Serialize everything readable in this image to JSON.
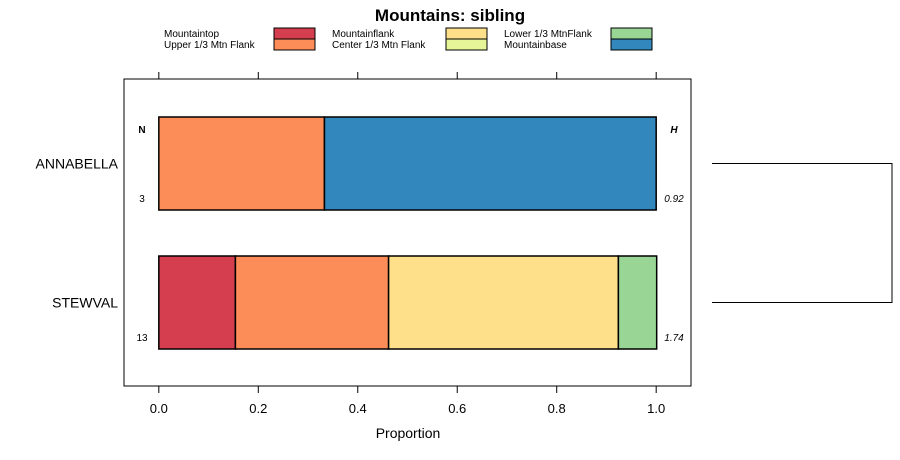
{
  "chart_data": {
    "type": "bar",
    "orientation": "horizontal",
    "stacked": true,
    "title": "Mountains: sibling",
    "xlabel": "Proportion",
    "ylabel": "",
    "xlim": [
      -0.07,
      1.07
    ],
    "x_ticks": [
      0.0,
      0.2,
      0.4,
      0.6,
      0.8,
      1.0
    ],
    "x_tick_labels": [
      "0.0",
      "0.2",
      "0.4",
      "0.6",
      "0.8",
      "1.0"
    ],
    "categories": [
      "ANNABELLA",
      "STEWVAL"
    ],
    "n_header": "N",
    "h_header": "H",
    "n_values": [
      "3",
      "13"
    ],
    "h_values": [
      "0.92",
      "1.74"
    ],
    "legend_position": "top",
    "series": [
      {
        "name": "Mountaintop",
        "color": "#d53e4f",
        "values": [
          0.0,
          0.154
        ]
      },
      {
        "name": "Upper 1/3 Mtn Flank",
        "color": "#fc8d59",
        "values": [
          0.333,
          0.308
        ]
      },
      {
        "name": "Mountainflank",
        "color": "#fee08b",
        "values": [
          0.0,
          0.462
        ]
      },
      {
        "name": "Center 1/3 Mtn Flank",
        "color": "#e6f598",
        "values": [
          0.0,
          0.0
        ]
      },
      {
        "name": "Lower 1/3 MtnFlank",
        "color": "#99d594",
        "values": [
          0.0,
          0.077
        ]
      },
      {
        "name": "Mountainbase",
        "color": "#3288bd",
        "values": [
          0.667,
          0.0
        ]
      }
    ],
    "dendrogram": {
      "leaves": [
        "ANNABELLA",
        "STEWVAL"
      ],
      "merged": true
    }
  }
}
